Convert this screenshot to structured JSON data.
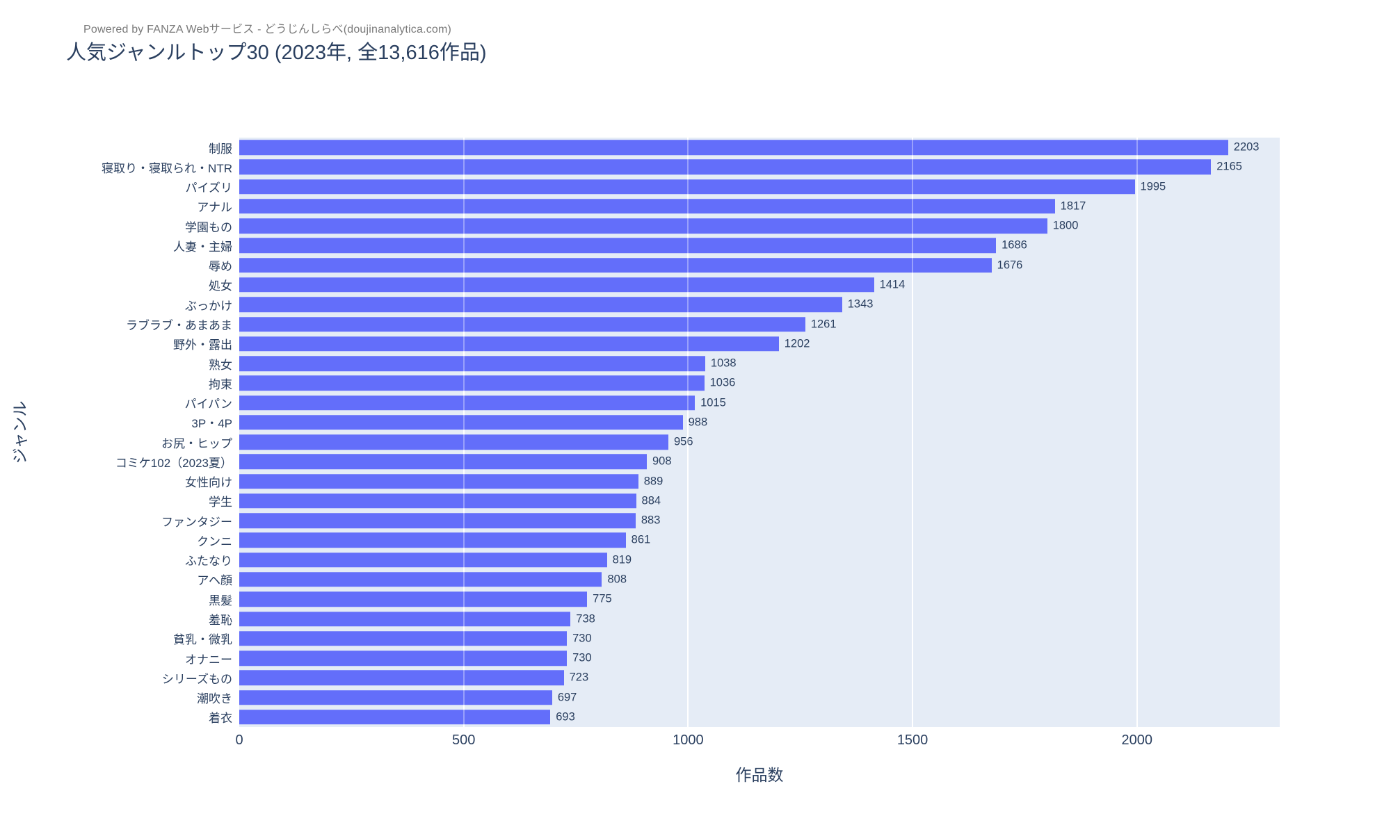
{
  "header": {
    "credit": "Powered by FANZA Webサービス - どうじんしらべ(doujinanalytica.com)",
    "title": "人気ジャンルトップ30 (2023年, 全13,616作品)"
  },
  "chart_data": {
    "type": "bar",
    "orientation": "horizontal",
    "title": "人気ジャンルトップ30 (2023年, 全13,616作品)",
    "xlabel": "作品数",
    "ylabel": "ジャンル",
    "xlim": [
      0,
      2318
    ],
    "xticks": [
      0,
      500,
      1000,
      1500,
      2000
    ],
    "grid": true,
    "legend": "none",
    "categories": [
      "制服",
      "寝取り・寝取られ・NTR",
      "パイズリ",
      "アナル",
      "学園もの",
      "人妻・主婦",
      "辱め",
      "処女",
      "ぶっかけ",
      "ラブラブ・あまあま",
      "野外・露出",
      "熟女",
      "拘束",
      "パイパン",
      "3P・4P",
      "お尻・ヒップ",
      "コミケ102（2023夏）",
      "女性向け",
      "学生",
      "ファンタジー",
      "クンニ",
      "ふたなり",
      "アヘ顔",
      "黒髪",
      "羞恥",
      "貧乳・微乳",
      "オナニー",
      "シリーズもの",
      "潮吹き",
      "着衣"
    ],
    "values": [
      2203,
      2165,
      1995,
      1817,
      1800,
      1686,
      1676,
      1414,
      1343,
      1261,
      1202,
      1038,
      1036,
      1015,
      988,
      956,
      908,
      889,
      884,
      883,
      861,
      819,
      808,
      775,
      738,
      730,
      730,
      723,
      697,
      693
    ],
    "colors": {
      "bar": "#636EFA",
      "plot_background": "#E5ECF6",
      "text": "#2a3f5f",
      "credit_text": "#7a7a7a",
      "gridline": "#ffffff"
    }
  }
}
